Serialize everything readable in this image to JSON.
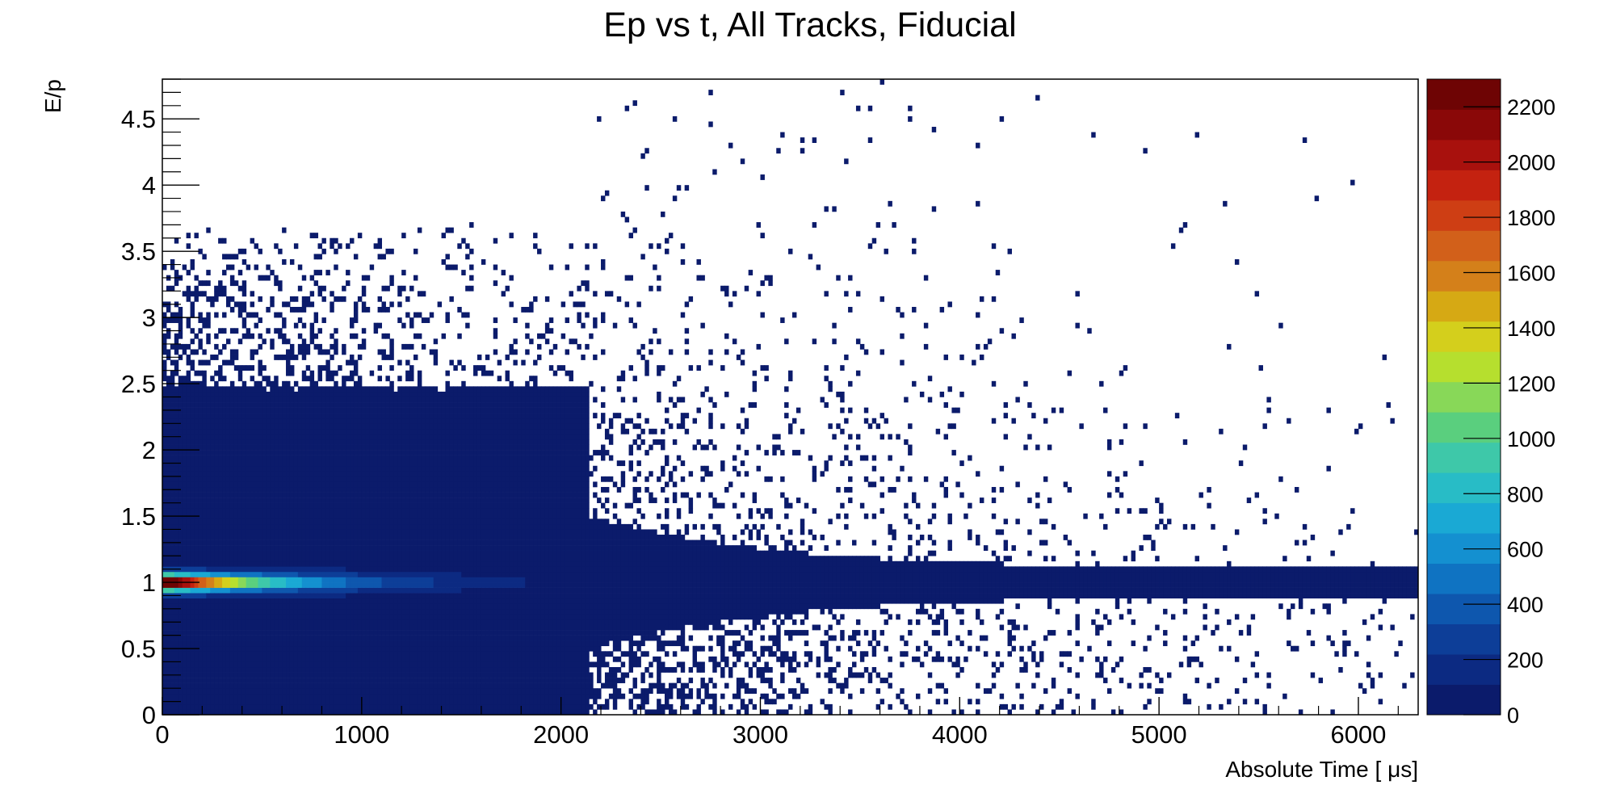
{
  "chart_data": {
    "type": "heatmap",
    "title": "Ep vs t, All Tracks, Fiducial",
    "xlabel": "Absolute Time [ μs]",
    "ylabel": "E/p",
    "xlim": [
      0,
      6300
    ],
    "ylim": [
      0,
      4.8
    ],
    "xticks": [
      0,
      1000,
      2000,
      3000,
      4000,
      5000,
      6000
    ],
    "xtick_labels": [
      "0",
      "1000",
      "2000",
      "3000",
      "4000",
      "5000",
      "6000"
    ],
    "yticks": [
      0,
      0.5,
      1,
      1.5,
      2,
      2.5,
      3,
      3.5,
      4,
      4.5
    ],
    "ytick_labels": [
      "0",
      "0.5",
      "1",
      "1.5",
      "2",
      "2.5",
      "3",
      "3.5",
      "4",
      "4.5"
    ],
    "zlim": [
      0,
      2300
    ],
    "zticks": [
      0,
      200,
      400,
      600,
      800,
      1000,
      1200,
      1400,
      1600,
      1800,
      2000,
      2200
    ],
    "ztick_labels": [
      "0",
      "200",
      "400",
      "600",
      "800",
      "1000",
      "1200",
      "1400",
      "1600",
      "1800",
      "2000",
      "2200"
    ],
    "grid": false,
    "legend": "colorbar-right",
    "palette": [
      "#0b1b6b",
      "#0c2a82",
      "#0d3e98",
      "#0e57ae",
      "#0f73c2",
      "#1490d0",
      "#1aa9d4",
      "#28bcc6",
      "#3ec8a9",
      "#5acf7e",
      "#88d858",
      "#b6df2e",
      "#d4cf1c",
      "#d6a914",
      "#d4801a",
      "#d2601a",
      "#ce3e14",
      "#c42210",
      "#a8110d",
      "#8a0808",
      "#6e0404"
    ],
    "density_description_values": {
      "core_peak": {
        "t_range": [
          50,
          450
        ],
        "Ep": 0.97,
        "z_max": 2250
      },
      "core_band": {
        "t_range": [
          0,
          6300
        ],
        "Ep_center": 1.0
      }
    }
  }
}
